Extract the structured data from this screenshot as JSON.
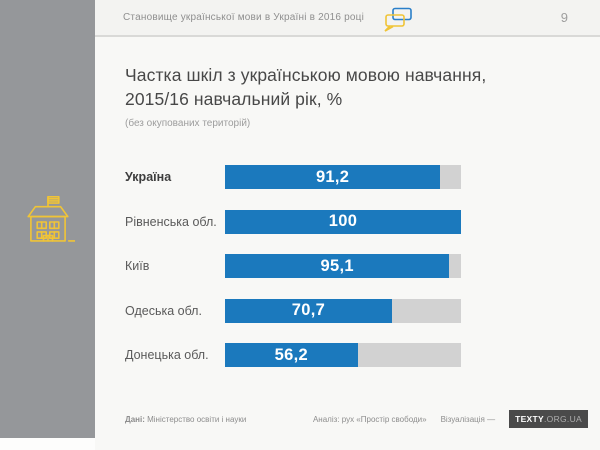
{
  "header": {
    "title": "Становище української мови в Україні в 2016 році",
    "page_number": "9",
    "icon": "speech-bubbles-icon"
  },
  "sidebar": {
    "icon": "school-building-icon"
  },
  "main": {
    "title_line1": "Частка шкіл з українською мовою навчання,",
    "title_line2": "2015/16 навчальний рік, %",
    "subtitle": "(без окупованих територій)"
  },
  "chart_data": {
    "type": "bar",
    "orientation": "horizontal",
    "title": "Частка шкіл з українською мовою навчання, 2015/16 навчальний рік, %",
    "subtitle": "(без окупованих територій)",
    "categories": [
      "Україна",
      "Рівненська обл.",
      "Київ",
      "Одеська обл.",
      "Донецька обл."
    ],
    "values": [
      91.2,
      100,
      95.1,
      70.7,
      56.2
    ],
    "value_labels": [
      "91,2",
      "100",
      "95,1",
      "70,7",
      "56,2"
    ],
    "xlim": [
      0,
      100
    ],
    "grid": false,
    "legend": false,
    "value_labels_position": "inside-center"
  },
  "colors": {
    "bar_blue": "#1b79bd",
    "track_gray": "#d2d2d2",
    "sidebar_gray": "#95979a",
    "icon_yellow": "#f0c437",
    "icon_blue": "#2a7fc9"
  },
  "footer": {
    "source_label": "Дані:",
    "source_text": "Міністерство освіти і науки",
    "analysis": "Аналіз: рух «Простір свободи»",
    "visualization_label": "Візуалізація —",
    "brand_bold": "TEXTY",
    "brand_rest": ".ORG.UA"
  }
}
